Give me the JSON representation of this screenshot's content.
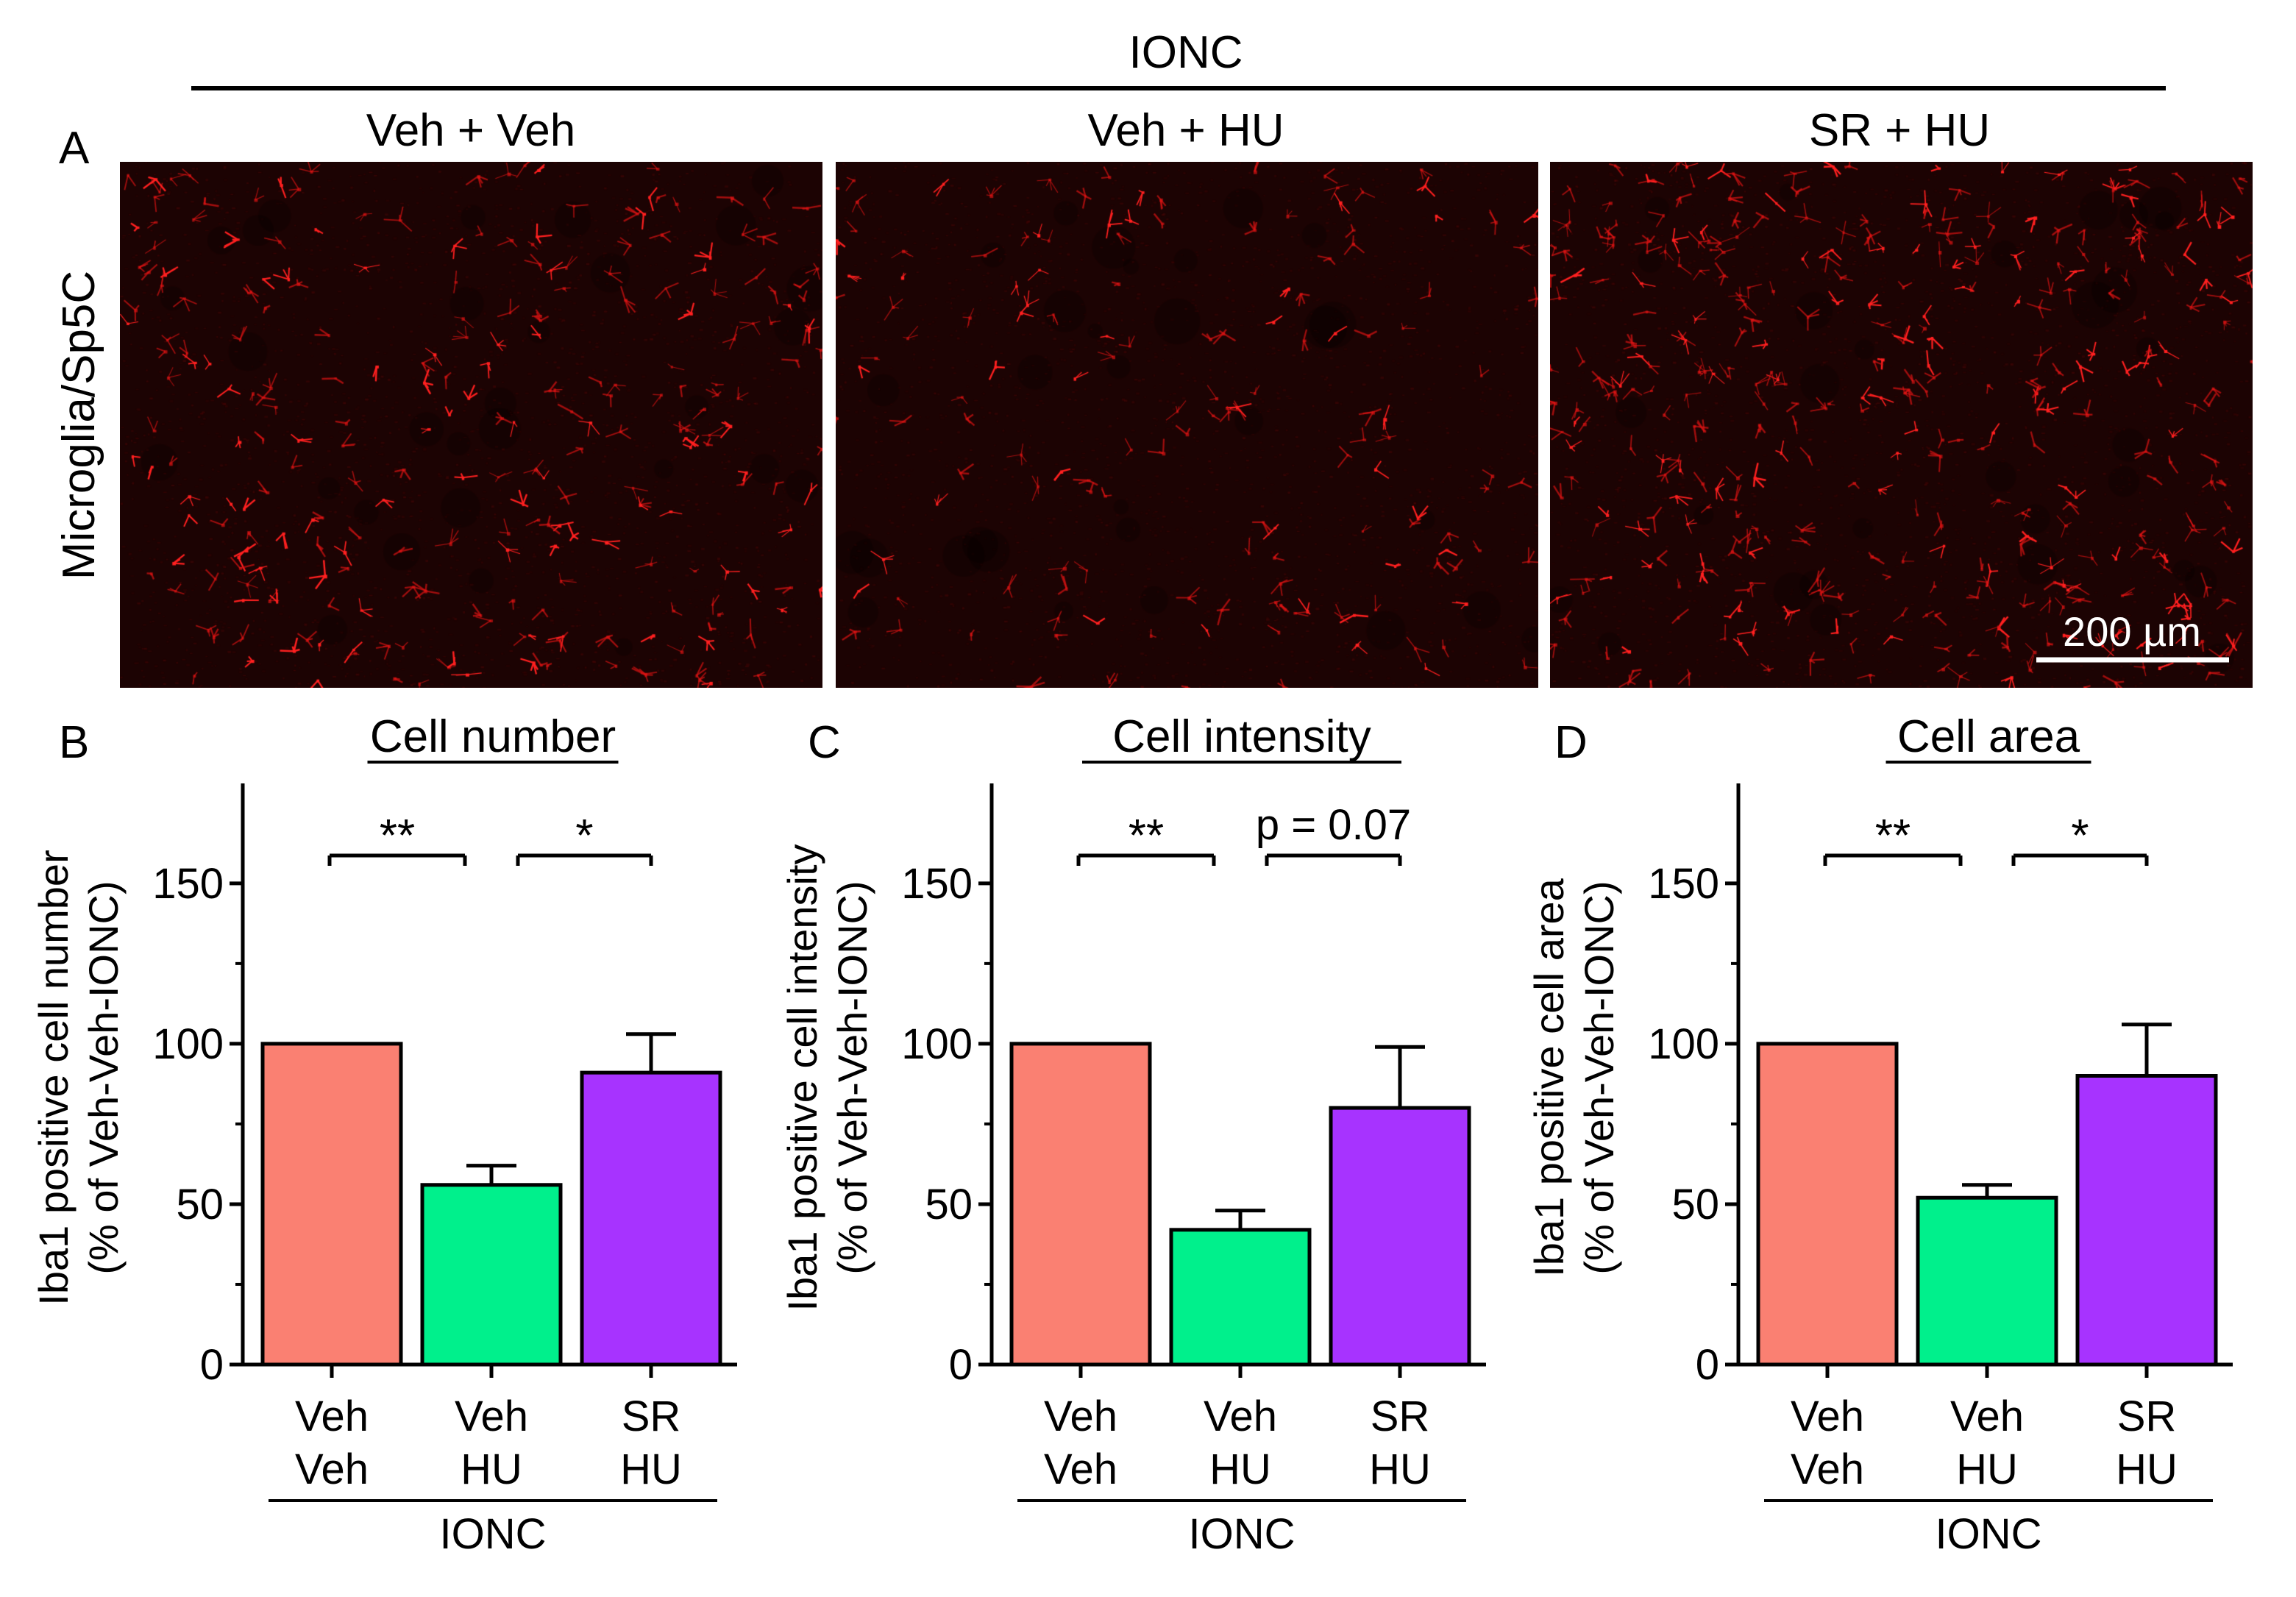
{
  "figure": {
    "top_group_label": "IONC",
    "panel_a": {
      "letter": "A",
      "row_label": "Microglia/Sp5C",
      "scale_bar_label": "200 µm",
      "images": [
        {
          "title": "Veh + Veh",
          "density": "medium"
        },
        {
          "title": "Veh + HU",
          "density": "low"
        },
        {
          "title": "SR + HU",
          "density": "high"
        }
      ]
    }
  },
  "colors": {
    "veh_veh": "#fa8072",
    "veh_hu": "#00f08c",
    "sr_hu": "#a733ff",
    "micro_background": "#1c0303",
    "micro_cell": "#ff2020"
  },
  "chart_data": [
    {
      "type": "bar",
      "panel": "B",
      "title": "Cell number",
      "ylabel": [
        "Iba1 positive cell number",
        "(% of Veh-Veh-IONC)"
      ],
      "ylim": [
        0,
        180
      ],
      "yticks": [
        0,
        50,
        100,
        150
      ],
      "categories": [
        [
          "Veh",
          "Veh"
        ],
        [
          "Veh",
          "HU"
        ],
        [
          "SR",
          "HU"
        ]
      ],
      "group_label": "IONC",
      "values": [
        100,
        56,
        91
      ],
      "errors": [
        0,
        6,
        12
      ],
      "significance": [
        {
          "from": 0,
          "to": 1,
          "label": "**"
        },
        {
          "from": 1,
          "to": 2,
          "label": "*"
        }
      ]
    },
    {
      "type": "bar",
      "panel": "C",
      "title": "Cell intensity",
      "ylabel": [
        "Iba1 positive cell intensity",
        "(% of Veh-Veh-IONC)"
      ],
      "ylim": [
        0,
        180
      ],
      "yticks": [
        0,
        50,
        100,
        150
      ],
      "categories": [
        [
          "Veh",
          "Veh"
        ],
        [
          "Veh",
          "HU"
        ],
        [
          "SR",
          "HU"
        ]
      ],
      "group_label": "IONC",
      "values": [
        100,
        42,
        80
      ],
      "errors": [
        0,
        6,
        19
      ],
      "significance": [
        {
          "from": 0,
          "to": 1,
          "label": "**"
        },
        {
          "from": 1,
          "to": 2,
          "label": "p = 0.07"
        }
      ]
    },
    {
      "type": "bar",
      "panel": "D",
      "title": "Cell area",
      "ylabel": [
        "Iba1 positive cell area",
        "(% of Veh-Veh-IONC)"
      ],
      "ylim": [
        0,
        180
      ],
      "yticks": [
        0,
        50,
        100,
        150
      ],
      "categories": [
        [
          "Veh",
          "Veh"
        ],
        [
          "Veh",
          "HU"
        ],
        [
          "SR",
          "HU"
        ]
      ],
      "group_label": "IONC",
      "values": [
        100,
        52,
        90
      ],
      "errors": [
        0,
        4,
        16
      ],
      "significance": [
        {
          "from": 0,
          "to": 1,
          "label": "**"
        },
        {
          "from": 1,
          "to": 2,
          "label": "*"
        }
      ]
    }
  ]
}
